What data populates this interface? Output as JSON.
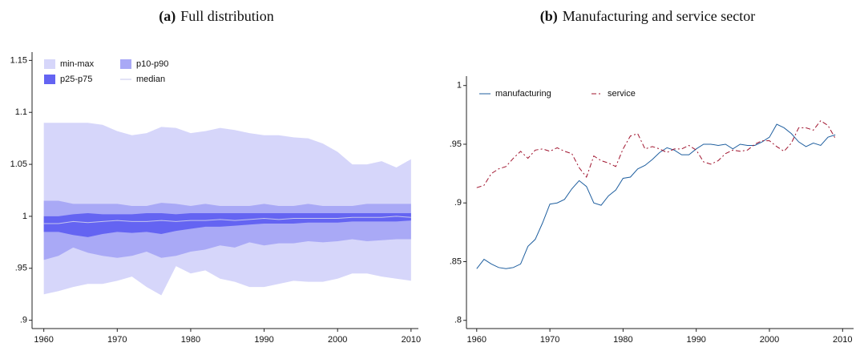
{
  "chart_data": [
    {
      "type": "area",
      "panel": "(a)",
      "title": "Full distribution",
      "x": [
        1960,
        1962,
        1964,
        1966,
        1968,
        1970,
        1972,
        1974,
        1976,
        1978,
        1980,
        1982,
        1984,
        1986,
        1988,
        1990,
        1992,
        1994,
        1996,
        1998,
        2000,
        2002,
        2004,
        2006,
        2008,
        2010
      ],
      "series": [
        {
          "name": "min-max",
          "color": "#d6d6fa",
          "high": [
            1.09,
            1.09,
            1.09,
            1.09,
            1.088,
            1.082,
            1.078,
            1.08,
            1.086,
            1.085,
            1.08,
            1.082,
            1.085,
            1.083,
            1.08,
            1.078,
            1.078,
            1.076,
            1.075,
            1.07,
            1.062,
            1.05,
            1.05,
            1.053,
            1.047,
            1.055
          ],
          "low": [
            0.925,
            0.928,
            0.932,
            0.935,
            0.935,
            0.938,
            0.942,
            0.932,
            0.924,
            0.952,
            0.945,
            0.948,
            0.94,
            0.937,
            0.932,
            0.932,
            0.935,
            0.938,
            0.937,
            0.937,
            0.94,
            0.945,
            0.945,
            0.942,
            0.94,
            0.938
          ]
        },
        {
          "name": "p10-p90",
          "color": "#a9a9f6",
          "high": [
            1.015,
            1.015,
            1.012,
            1.012,
            1.012,
            1.012,
            1.01,
            1.01,
            1.013,
            1.012,
            1.01,
            1.012,
            1.01,
            1.01,
            1.01,
            1.012,
            1.01,
            1.01,
            1.012,
            1.01,
            1.01,
            1.01,
            1.012,
            1.012,
            1.012,
            1.012
          ],
          "low": [
            0.958,
            0.962,
            0.97,
            0.965,
            0.962,
            0.96,
            0.962,
            0.966,
            0.96,
            0.962,
            0.966,
            0.968,
            0.972,
            0.97,
            0.975,
            0.972,
            0.974,
            0.974,
            0.976,
            0.975,
            0.976,
            0.978,
            0.976,
            0.977,
            0.978,
            0.978
          ]
        },
        {
          "name": "p25-p75",
          "color": "#6464f2",
          "high": [
            1.0,
            1.0,
            1.002,
            1.003,
            1.002,
            1.002,
            1.002,
            1.003,
            1.003,
            1.002,
            1.003,
            1.003,
            1.003,
            1.003,
            1.003,
            1.003,
            1.003,
            1.003,
            1.003,
            1.003,
            1.003,
            1.003,
            1.003,
            1.003,
            1.003,
            1.003
          ],
          "low": [
            0.985,
            0.985,
            0.982,
            0.98,
            0.983,
            0.985,
            0.984,
            0.985,
            0.983,
            0.986,
            0.988,
            0.99,
            0.99,
            0.991,
            0.992,
            0.993,
            0.993,
            0.993,
            0.994,
            0.994,
            0.994,
            0.995,
            0.995,
            0.995,
            0.995,
            0.996
          ]
        },
        {
          "name": "median",
          "color": "#c4c4ee",
          "linestyle": "solid",
          "values": [
            0.993,
            0.993,
            0.995,
            0.994,
            0.995,
            0.996,
            0.995,
            0.995,
            0.996,
            0.995,
            0.996,
            0.996,
            0.997,
            0.996,
            0.997,
            0.998,
            0.997,
            0.998,
            0.998,
            0.998,
            0.998,
            0.999,
            0.999,
            0.999,
            1.0,
            0.999
          ]
        }
      ],
      "xlim": [
        1958.4,
        2011
      ],
      "xticks": [
        1960,
        1970,
        1980,
        1990,
        2000,
        2010
      ],
      "ylim": [
        0.892,
        1.158
      ],
      "yticks": [
        {
          "value": 0.9,
          "label": ".9"
        },
        {
          "value": 0.95,
          "label": ".95"
        },
        1,
        1.05,
        1.1,
        1.15
      ],
      "legend_columns": 2
    },
    {
      "type": "line",
      "panel": "(b)",
      "title": "Manufacturing and service sector",
      "x": [
        1960,
        1961,
        1962,
        1963,
        1964,
        1965,
        1966,
        1967,
        1968,
        1969,
        1970,
        1971,
        1972,
        1973,
        1974,
        1975,
        1976,
        1977,
        1978,
        1979,
        1980,
        1981,
        1982,
        1983,
        1984,
        1985,
        1986,
        1987,
        1988,
        1989,
        1990,
        1991,
        1992,
        1993,
        1994,
        1995,
        1996,
        1997,
        1998,
        1999,
        2000,
        2001,
        2002,
        2003,
        2004,
        2005,
        2006,
        2007,
        2008,
        2009
      ],
      "series": [
        {
          "name": "manufacturing",
          "color": "#1f5f9f",
          "linestyle": "solid",
          "values": [
            0.844,
            0.852,
            0.848,
            0.845,
            0.844,
            0.845,
            0.848,
            0.863,
            0.869,
            0.883,
            0.899,
            0.9,
            0.903,
            0.912,
            0.919,
            0.914,
            0.9,
            0.898,
            0.906,
            0.911,
            0.921,
            0.922,
            0.929,
            0.932,
            0.937,
            0.943,
            0.947,
            0.945,
            0.941,
            0.941,
            0.946,
            0.95,
            0.95,
            0.949,
            0.95,
            0.946,
            0.95,
            0.949,
            0.949,
            0.952,
            0.956,
            0.967,
            0.964,
            0.959,
            0.952,
            0.948,
            0.951,
            0.949,
            0.956,
            0.958
          ]
        },
        {
          "name": "service",
          "color": "#a0142e",
          "linestyle": "dashed",
          "values": [
            0.913,
            0.915,
            0.925,
            0.929,
            0.931,
            0.938,
            0.944,
            0.938,
            0.945,
            0.946,
            0.944,
            0.947,
            0.944,
            0.942,
            0.93,
            0.922,
            0.94,
            0.936,
            0.934,
            0.931,
            0.946,
            0.957,
            0.959,
            0.946,
            0.948,
            0.946,
            0.943,
            0.946,
            0.946,
            0.949,
            0.945,
            0.935,
            0.933,
            0.936,
            0.942,
            0.945,
            0.944,
            0.945,
            0.95,
            0.953,
            0.953,
            0.948,
            0.944,
            0.951,
            0.964,
            0.964,
            0.962,
            0.97,
            0.966,
            0.955
          ]
        }
      ],
      "xlim": [
        1958.6,
        2011.5
      ],
      "xticks": [
        1960,
        1970,
        1980,
        1990,
        2000,
        2010
      ],
      "ylim": [
        0.793,
        1.008
      ],
      "yticks": [
        {
          "value": 0.8,
          "label": ".8"
        },
        {
          "value": 0.85,
          "label": ".85"
        },
        {
          "value": 0.9,
          "label": ".9"
        },
        {
          "value": 0.95,
          "label": ".95"
        },
        1
      ],
      "legend_columns": 2
    }
  ]
}
